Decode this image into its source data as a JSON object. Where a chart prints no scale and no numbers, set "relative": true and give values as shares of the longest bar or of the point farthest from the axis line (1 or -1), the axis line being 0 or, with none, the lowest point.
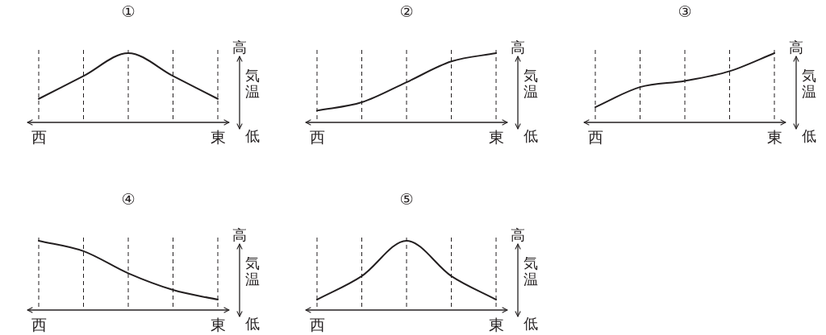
{
  "chart_data": [
    {
      "type": "line",
      "title": "①",
      "categories": [
        "西",
        null,
        null,
        null,
        "東"
      ],
      "ylabel": "気温",
      "annotations": [
        "高",
        "低"
      ],
      "relative": true,
      "grid": "x",
      "series": [
        {
          "color": "#231f20",
          "values": [
            0.34,
            0.67,
            1,
            0.67,
            0.34
          ]
        }
      ]
    },
    {
      "type": "line",
      "title": "②",
      "categories": [
        "西",
        null,
        null,
        null,
        "東"
      ],
      "ylabel": "気温",
      "annotations": [
        "高",
        "低"
      ],
      "relative": true,
      "grid": "x",
      "series": [
        {
          "color": "#231f20",
          "values": [
            0.17,
            0.29,
            0.58,
            0.88,
            1
          ]
        }
      ]
    },
    {
      "type": "line",
      "title": "③",
      "categories": [
        "西",
        null,
        null,
        null,
        "東"
      ],
      "ylabel": "気温",
      "annotations": [
        "高",
        "低"
      ],
      "relative": true,
      "grid": "x",
      "series": [
        {
          "color": "#231f20",
          "values": [
            0.22,
            0.51,
            0.6,
            0.74,
            1
          ]
        }
      ]
    },
    {
      "type": "line",
      "title": "④",
      "categories": [
        "西",
        null,
        null,
        null,
        "東"
      ],
      "ylabel": "気温",
      "annotations": [
        "高",
        "低"
      ],
      "relative": true,
      "grid": "x",
      "series": [
        {
          "color": "#231f20",
          "values": [
            1,
            0.85,
            0.53,
            0.29,
            0.15
          ]
        }
      ]
    },
    {
      "type": "line",
      "title": "⑤",
      "categories": [
        "西",
        null,
        null,
        null,
        "東"
      ],
      "ylabel": "気温",
      "annotations": [
        "高",
        "低"
      ],
      "relative": true,
      "grid": "x",
      "series": [
        {
          "color": "#231f20",
          "values": [
            0.15,
            0.49,
            1,
            0.49,
            0.15
          ]
        }
      ]
    }
  ]
}
